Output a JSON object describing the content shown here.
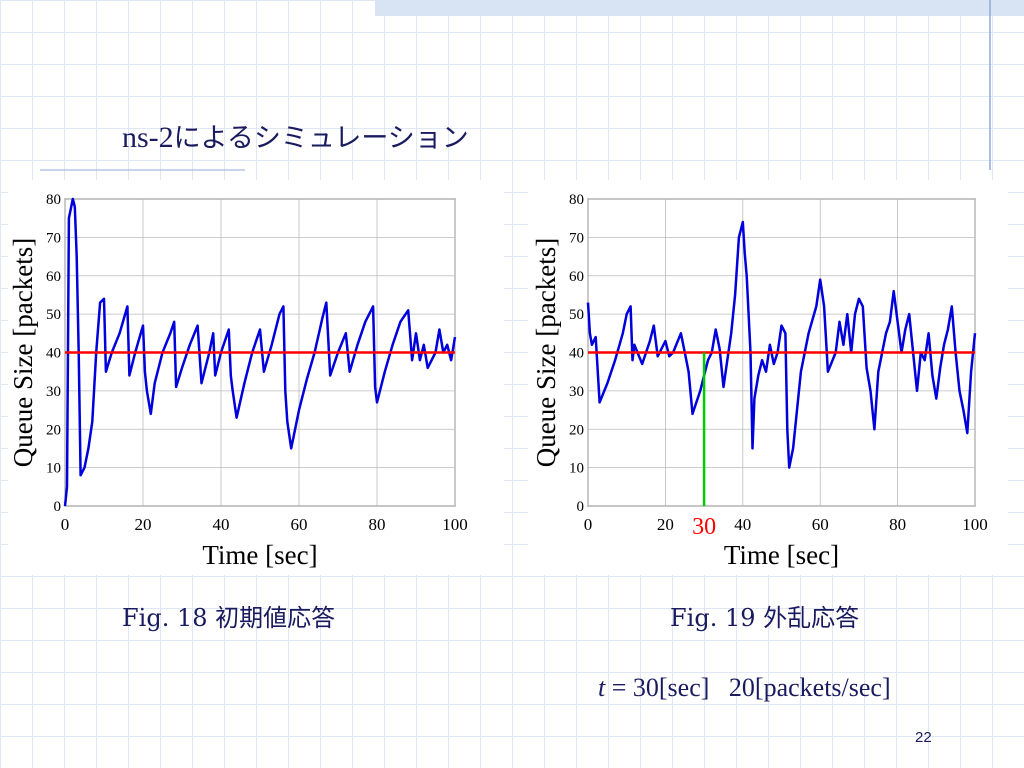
{
  "slide": {
    "title_latin": "ns-2",
    "title_jp": "によるシミュレーション",
    "caption1": "Fig. 18  初期値応答",
    "caption2": "Fig. 19  外乱応答",
    "note_var": "t",
    "note_rest": " = 30[sec]   20[packets/sec]",
    "page": "22"
  },
  "chart_data": [
    {
      "type": "line",
      "xlabel": "Time [sec]",
      "ylabel": "Queue Size [packets]",
      "xlim": [
        0,
        100
      ],
      "ylim": [
        0,
        80
      ],
      "xticks": [
        0,
        20,
        40,
        60,
        80,
        100
      ],
      "yticks": [
        0,
        10,
        20,
        30,
        40,
        50,
        60,
        70,
        80
      ],
      "grid": true,
      "reference_value": 40,
      "reference_color": "#ff0000",
      "series": [
        {
          "color": "#0000dd",
          "x": [
            0,
            0.5,
            1,
            2,
            2.5,
            3,
            3.5,
            4,
            5,
            6,
            7,
            8,
            9,
            10,
            10.5,
            12,
            14,
            16,
            16.5,
            18,
            20,
            20.5,
            21,
            22,
            23,
            25,
            27,
            28,
            28.5,
            30,
            32,
            34,
            35,
            37,
            38,
            38.5,
            40,
            42,
            42.5,
            43,
            44,
            46,
            48,
            50,
            51,
            53,
            55,
            56,
            56.5,
            57,
            58,
            60,
            62,
            64,
            66,
            67,
            68,
            70,
            72,
            73,
            75,
            77,
            79,
            79.5,
            80,
            82,
            84,
            86,
            88,
            89,
            90,
            91,
            92,
            93,
            95,
            96,
            97,
            98,
            99,
            100
          ],
          "values": [
            0,
            5,
            75,
            80,
            78,
            65,
            40,
            8,
            10,
            15,
            22,
            40,
            53,
            54,
            35,
            40,
            45,
            52,
            34,
            40,
            47,
            35,
            30,
            24,
            32,
            40,
            45,
            48,
            31,
            36,
            42,
            47,
            32,
            40,
            45,
            34,
            40,
            46,
            34,
            30,
            23,
            32,
            40,
            46,
            35,
            42,
            50,
            52,
            30,
            22,
            15,
            25,
            33,
            40,
            49,
            53,
            34,
            40,
            45,
            35,
            42,
            48,
            52,
            31,
            27,
            35,
            42,
            48,
            51,
            38,
            45,
            38,
            42,
            36,
            40,
            46,
            40,
            42,
            38,
            44
          ]
        }
      ]
    },
    {
      "type": "line",
      "xlabel": "Time [sec]",
      "ylabel": "Queue Size [packets]",
      "xlim": [
        0,
        100
      ],
      "ylim": [
        0,
        80
      ],
      "xticks": [
        0,
        20,
        40,
        60,
        80,
        100
      ],
      "yticks": [
        0,
        10,
        20,
        30,
        40,
        50,
        60,
        70,
        80
      ],
      "grid": true,
      "reference_value": 40,
      "reference_color": "#ff0000",
      "marker_x": 30,
      "marker_color": "#00cc00",
      "marker_label_color": "#ff0000",
      "series": [
        {
          "color": "#0000dd",
          "x": [
            0,
            0.5,
            1,
            2,
            3,
            5,
            7,
            9,
            10,
            11,
            11.5,
            12,
            14,
            16,
            17,
            18,
            20,
            21,
            22,
            24,
            25,
            26,
            27,
            29,
            31,
            32,
            33,
            34,
            35,
            36,
            37,
            38,
            39,
            40,
            40.5,
            41,
            42,
            42.5,
            43,
            44,
            45,
            46,
            47,
            48,
            49,
            50,
            51,
            51.5,
            52,
            53,
            55,
            57,
            59,
            60,
            61,
            62,
            64,
            65,
            66,
            67,
            68,
            69,
            70,
            71,
            72,
            73,
            74,
            75,
            77,
            78,
            79,
            80,
            81,
            82,
            83,
            84,
            85,
            86,
            87,
            88,
            89,
            90,
            91,
            92,
            93,
            94,
            95,
            96,
            97,
            98,
            99,
            100
          ],
          "values": [
            53,
            45,
            42,
            44,
            27,
            32,
            38,
            45,
            50,
            52,
            38,
            42,
            37,
            43,
            47,
            39,
            43,
            39,
            40,
            45,
            40,
            35,
            24,
            30,
            38,
            40,
            46,
            41,
            31,
            38,
            45,
            55,
            70,
            74,
            66,
            60,
            40,
            15,
            28,
            34,
            38,
            35,
            42,
            37,
            40,
            47,
            45,
            20,
            10,
            15,
            35,
            45,
            52,
            59,
            52,
            35,
            40,
            48,
            42,
            50,
            40,
            50,
            54,
            52,
            36,
            30,
            20,
            35,
            45,
            48,
            56,
            48,
            40,
            46,
            50,
            40,
            30,
            40,
            38,
            45,
            34,
            28,
            36,
            42,
            46,
            52,
            40,
            30,
            25,
            19,
            35,
            45
          ]
        }
      ]
    }
  ]
}
